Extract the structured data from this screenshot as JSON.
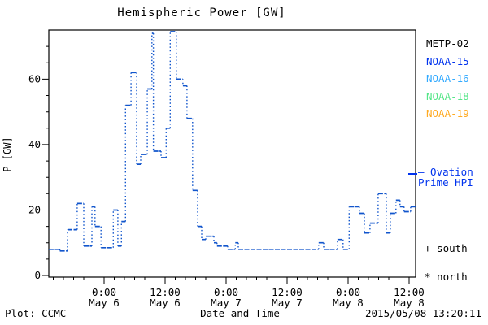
{
  "title": "Hemispheric Power [GW]",
  "footer": {
    "plot_source": "Plot: CCMC",
    "timestamp": "2015/05/08 13:20:11"
  },
  "ovation_legend": {
    "line1": "– Ovation",
    "line2": "Prime HPI",
    "color": "#0033ee"
  },
  "hemisphere_markers": {
    "south": "+ south",
    "north": "* north"
  },
  "satellite_legend": [
    {
      "label": "METP-02",
      "color": "#000000"
    },
    {
      "label": "NOAA-15",
      "color": "#0033ee"
    },
    {
      "label": "NOAA-16",
      "color": "#33aaff"
    },
    {
      "label": "NOAA-18",
      "color": "#55e688"
    },
    {
      "label": "NOAA-19",
      "color": "#ffaa22"
    }
  ],
  "chart_data": {
    "type": "line",
    "subtype": "dotted-step",
    "title": "Hemispheric Power [GW]",
    "xlabel": "Date and Time",
    "ylabel": "P [GW]",
    "ylim": [
      0,
      75
    ],
    "y_major_ticks": [
      0,
      20,
      40,
      60
    ],
    "y_minor_step_gw": 5,
    "x_minor_step_hours": 2,
    "x_unit_note": "hours since 2015-05-05 00:00 UT",
    "xlim": [
      13.1,
      85.3
    ],
    "x_ticks": [
      {
        "t": 24,
        "time": "0:00",
        "date": "May 6"
      },
      {
        "t": 36,
        "time": "12:00",
        "date": "May 6"
      },
      {
        "t": 48,
        "time": "0:00",
        "date": "May 7"
      },
      {
        "t": 60,
        "time": "12:00",
        "date": "May 7"
      },
      {
        "t": 72,
        "time": "0:00",
        "date": "May 8"
      },
      {
        "t": 84,
        "time": "12:00",
        "date": "May 8"
      }
    ],
    "line_color": "#1155cc",
    "grid": false,
    "legend_position": "right-margin",
    "series": [
      {
        "name": "Ovation Prime HPI",
        "points": [
          [
            13.1,
            8
          ],
          [
            15.3,
            7.5
          ],
          [
            16.8,
            14
          ],
          [
            18.7,
            22
          ],
          [
            20.0,
            9
          ],
          [
            21.6,
            21
          ],
          [
            22.2,
            15
          ],
          [
            23.4,
            8.5
          ],
          [
            25.8,
            20
          ],
          [
            26.7,
            9
          ],
          [
            27.4,
            16.5
          ],
          [
            28.2,
            52
          ],
          [
            29.3,
            62
          ],
          [
            30.4,
            34
          ],
          [
            31.2,
            37
          ],
          [
            32.5,
            57
          ],
          [
            33.4,
            74
          ],
          [
            33.7,
            38
          ],
          [
            35.2,
            36
          ],
          [
            36.2,
            45
          ],
          [
            37.0,
            74.5
          ],
          [
            38.2,
            60
          ],
          [
            39.5,
            58
          ],
          [
            40.3,
            48
          ],
          [
            41.4,
            26
          ],
          [
            42.4,
            15
          ],
          [
            43.2,
            11
          ],
          [
            44.0,
            12
          ],
          [
            45.6,
            10
          ],
          [
            46.2,
            9
          ],
          [
            48.3,
            8
          ],
          [
            49.8,
            10
          ],
          [
            50.4,
            8
          ],
          [
            66.2,
            10
          ],
          [
            67.2,
            8
          ],
          [
            69.9,
            11
          ],
          [
            71.0,
            8
          ],
          [
            72.2,
            21
          ],
          [
            74.2,
            19
          ],
          [
            75.2,
            13
          ],
          [
            76.3,
            16
          ],
          [
            77.9,
            25
          ],
          [
            79.5,
            13
          ],
          [
            80.3,
            19
          ],
          [
            81.4,
            23
          ],
          [
            82.2,
            21
          ],
          [
            83.0,
            19.5
          ],
          [
            84.3,
            21
          ]
        ]
      }
    ]
  }
}
